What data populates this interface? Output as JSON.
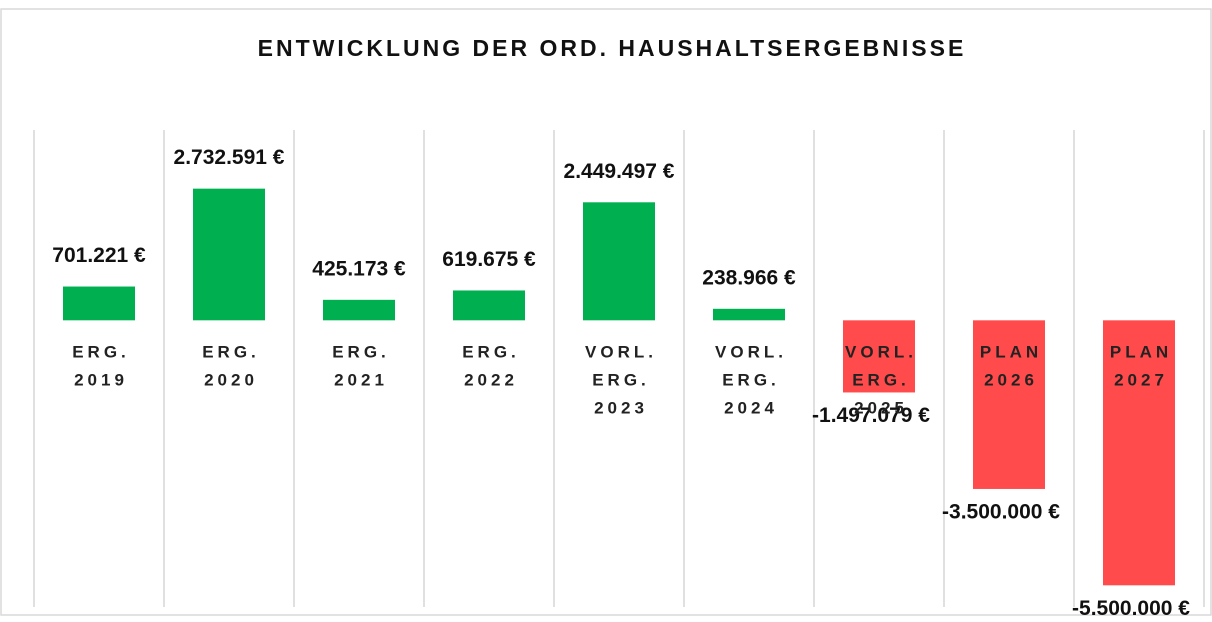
{
  "chart_data": {
    "type": "bar",
    "title": "ENTWICKLUNG DER ORD. HAUSHALTSERGEBNISSE",
    "categories": [
      [
        "ERG.",
        "2019"
      ],
      [
        "ERG.",
        "2020"
      ],
      [
        "ERG.",
        "2021"
      ],
      [
        "ERG.",
        "2022"
      ],
      [
        "VORL.",
        "ERG.",
        "2023"
      ],
      [
        "VORL.",
        "ERG.",
        "2024"
      ],
      [
        "VORL.",
        "ERG.",
        "2025"
      ],
      [
        "PLAN",
        "2026"
      ],
      [
        "PLAN",
        "2027"
      ]
    ],
    "values": [
      701221,
      2732591,
      425173,
      619675,
      2449497,
      238966,
      -1497079,
      -3500000,
      -5500000
    ],
    "value_labels": [
      "701.221 €",
      "2.732.591 €",
      "425.173 €",
      "619.675 €",
      "2.449.497 €",
      "238.966 €",
      "-1.497.079 €",
      "-3.500.000 €",
      "-5.500.000 €"
    ],
    "colors": [
      "#00b050",
      "#00b050",
      "#00b050",
      "#00b050",
      "#00b050",
      "#00b050",
      "#ff4b4b",
      "#ff4b4b",
      "#ff4b4b"
    ],
    "ylim": [
      -5950000,
      3950000
    ]
  }
}
